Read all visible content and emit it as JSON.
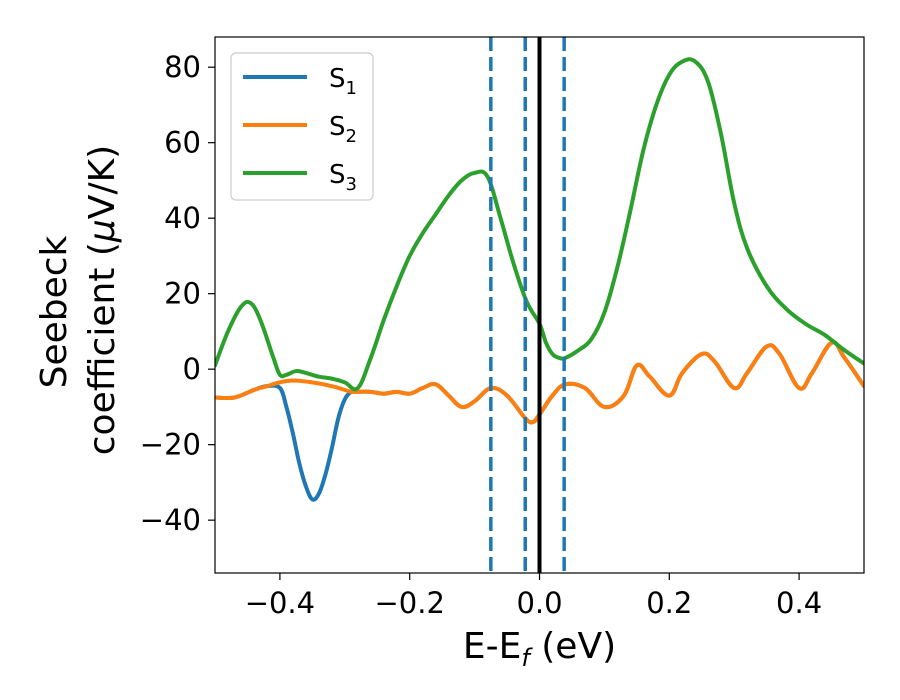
{
  "chart_data": {
    "type": "line",
    "title": "",
    "xlabel": {
      "main": "E-E",
      "sub": "f",
      "units": " (eV)"
    },
    "ylabel": {
      "line1": "Seebeck",
      "line2": "coefficient  (",
      "mu": "μ",
      "line2_end": "V/K)"
    },
    "xlim": [
      -0.5,
      0.5
    ],
    "ylim": [
      -54,
      88
    ],
    "xticks": [
      -0.4,
      -0.2,
      0.0,
      0.2,
      0.4
    ],
    "xtick_labels": [
      "−0.4",
      "−0.2",
      "0.0",
      "0.2",
      "0.4"
    ],
    "yticks": [
      -40,
      -20,
      0,
      20,
      40,
      60,
      80
    ],
    "ytick_labels": [
      "−40",
      "−20",
      "0",
      "20",
      "40",
      "60",
      "80"
    ],
    "grid": false,
    "legend_position": "upper-left",
    "vlines": [
      {
        "x": -0.075,
        "style": "dashed",
        "color": "#1f77b4"
      },
      {
        "x": -0.022,
        "style": "dashed",
        "color": "#1f77b4"
      },
      {
        "x": 0.0,
        "style": "solid",
        "color": "#000000"
      },
      {
        "x": 0.038,
        "style": "dashed",
        "color": "#1f77b4"
      }
    ],
    "series": [
      {
        "name": "S",
        "sub": "1",
        "color": "#1f77b4",
        "x": [
          -0.5,
          -0.47,
          -0.44,
          -0.42,
          -0.4,
          -0.39,
          -0.38,
          -0.37,
          -0.36,
          -0.35,
          -0.34,
          -0.33,
          -0.32,
          -0.31,
          -0.3,
          -0.29,
          -0.28,
          -0.26,
          -0.24,
          -0.22,
          -0.2,
          -0.18,
          -0.16,
          -0.14,
          -0.12,
          -0.1,
          -0.075,
          -0.05,
          -0.022,
          -0.01,
          0.0,
          0.02,
          0.04,
          0.07,
          0.1,
          0.13,
          0.15,
          0.17,
          0.2,
          0.22,
          0.25,
          0.27,
          0.3,
          0.32,
          0.35,
          0.37,
          0.4,
          0.42,
          0.45,
          0.47,
          0.5
        ],
        "y": [
          -7.5,
          -7.5,
          -5.5,
          -4.5,
          -5,
          -10,
          -17,
          -25,
          -31,
          -34.5,
          -33,
          -28,
          -21,
          -13,
          -8,
          -6,
          -6,
          -6,
          -6.5,
          -6,
          -6.5,
          -5,
          -4,
          -7,
          -10,
          -8.5,
          -5,
          -7,
          -13,
          -14,
          -12,
          -7,
          -4,
          -5,
          -10,
          -7,
          1,
          -2,
          -7,
          -1,
          4,
          2,
          -5,
          -1,
          6,
          4,
          -5,
          -1,
          7,
          3,
          -4.5
        ]
      },
      {
        "name": "S",
        "sub": "2",
        "color": "#ff7f0e",
        "x": [
          -0.5,
          -0.47,
          -0.44,
          -0.42,
          -0.4,
          -0.38,
          -0.35,
          -0.32,
          -0.3,
          -0.29,
          -0.28,
          -0.26,
          -0.24,
          -0.22,
          -0.2,
          -0.18,
          -0.16,
          -0.14,
          -0.12,
          -0.1,
          -0.075,
          -0.05,
          -0.022,
          -0.01,
          0.0,
          0.02,
          0.04,
          0.07,
          0.1,
          0.13,
          0.15,
          0.17,
          0.2,
          0.22,
          0.25,
          0.27,
          0.3,
          0.32,
          0.35,
          0.37,
          0.4,
          0.42,
          0.45,
          0.47,
          0.5
        ],
        "y": [
          -7.5,
          -7.5,
          -5.5,
          -4.5,
          -3.5,
          -3,
          -3.5,
          -4.5,
          -5.5,
          -6,
          -6,
          -6,
          -6.5,
          -6,
          -6.5,
          -5,
          -4,
          -7,
          -10,
          -8.5,
          -5,
          -7,
          -13,
          -14,
          -12,
          -7,
          -4,
          -5,
          -10,
          -7,
          1,
          -2,
          -7,
          -1,
          4,
          2,
          -5,
          -1,
          6,
          4,
          -5,
          -1,
          7,
          3,
          -4.5
        ]
      },
      {
        "name": "S",
        "sub": "3",
        "color": "#2ca02c",
        "x": [
          -0.5,
          -0.48,
          -0.46,
          -0.445,
          -0.43,
          -0.41,
          -0.4,
          -0.39,
          -0.375,
          -0.36,
          -0.34,
          -0.32,
          -0.3,
          -0.28,
          -0.26,
          -0.24,
          -0.22,
          -0.2,
          -0.18,
          -0.16,
          -0.14,
          -0.12,
          -0.1,
          -0.08,
          -0.06,
          -0.04,
          -0.02,
          0.0,
          0.01,
          0.02,
          0.03,
          0.04,
          0.06,
          0.08,
          0.1,
          0.12,
          0.14,
          0.16,
          0.18,
          0.2,
          0.22,
          0.24,
          0.26,
          0.28,
          0.3,
          0.32,
          0.35,
          0.38,
          0.41,
          0.44,
          0.47,
          0.5
        ],
        "y": [
          1,
          10,
          16.5,
          17.5,
          13,
          3,
          -1.5,
          -1.5,
          -0.5,
          -1,
          -2,
          -2.5,
          -3.5,
          -5,
          3,
          13,
          22,
          30,
          36,
          41,
          46,
          50,
          52,
          51,
          40,
          28,
          18,
          12,
          7,
          4,
          3,
          3,
          5,
          8,
          15,
          27,
          42,
          58,
          70,
          78,
          81.5,
          81.5,
          76,
          62,
          44,
          32,
          22,
          16,
          12,
          9,
          5,
          1.5
        ]
      }
    ]
  }
}
